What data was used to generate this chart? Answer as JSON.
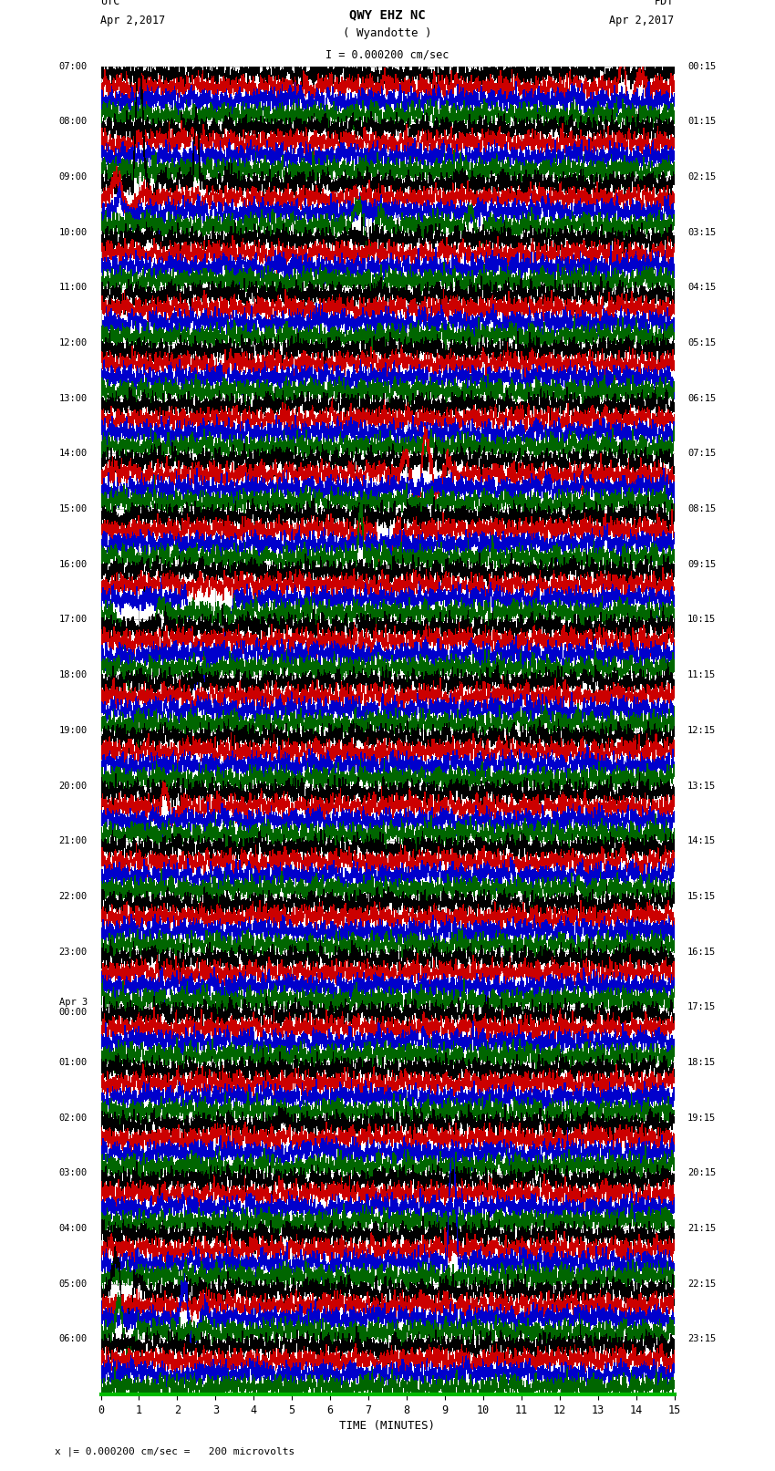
{
  "title_line1": "QWY EHZ NC",
  "title_line2": "( Wyandotte )",
  "scale_text": "I = 0.000200 cm/sec",
  "utc_header": "UTC",
  "utc_date": "Apr 2,2017",
  "pdt_header": "PDT",
  "pdt_date": "Apr 2,2017",
  "bottom_label": "x |= 0.000200 cm/sec =   200 microvolts",
  "xlabel": "TIME (MINUTES)",
  "left_times": [
    "07:00",
    "08:00",
    "09:00",
    "10:00",
    "11:00",
    "12:00",
    "13:00",
    "14:00",
    "15:00",
    "16:00",
    "17:00",
    "18:00",
    "19:00",
    "20:00",
    "21:00",
    "22:00",
    "23:00",
    "Apr 3\n00:00",
    "01:00",
    "02:00",
    "03:00",
    "04:00",
    "05:00",
    "06:00"
  ],
  "right_times": [
    "00:15",
    "01:15",
    "02:15",
    "03:15",
    "04:15",
    "05:15",
    "06:15",
    "07:15",
    "08:15",
    "09:15",
    "10:15",
    "11:15",
    "12:15",
    "13:15",
    "14:15",
    "15:15",
    "16:15",
    "17:15",
    "18:15",
    "19:15",
    "20:15",
    "21:15",
    "22:15",
    "23:15"
  ],
  "n_rows": 24,
  "minutes_per_row": 15,
  "trace_colors": [
    "#000000",
    "#cc0000",
    "#0000cc",
    "#006600"
  ],
  "bg_color": "#ffffff",
  "grid_color": "#999999",
  "green_axis_color": "#00bb00",
  "trace_lw": 0.35,
  "grid_lw": 0.5,
  "noise_base_amp": 0.055,
  "trace_scale": 0.38
}
